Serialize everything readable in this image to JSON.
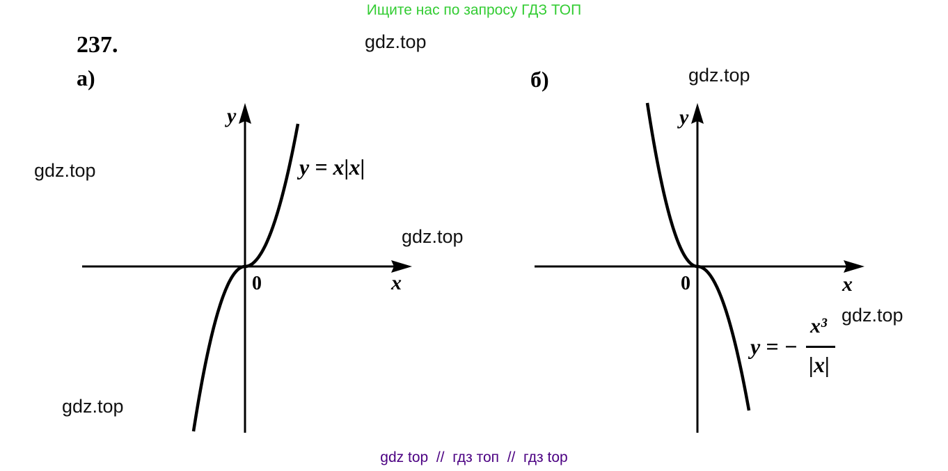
{
  "header_banner": "Ищите нас по запросу ГДЗ ТОП",
  "footer_banner": "gdz top  //  гдз топ  //  гдз top",
  "problem_number": "237.",
  "watermark": "gdz.top",
  "colors": {
    "banner": "#33cc33",
    "footer": "#4b0082",
    "ink": "#000000"
  },
  "graph_a": {
    "label": "а)",
    "axis_x": "x",
    "axis_y": "y",
    "origin": "0",
    "formula": "y = x|x|"
  },
  "graph_b": {
    "label": "б)",
    "axis_x": "x",
    "axis_y": "y",
    "origin": "0",
    "formula_lhs": "y = −",
    "formula_num": "x³",
    "formula_den": "|x|"
  }
}
